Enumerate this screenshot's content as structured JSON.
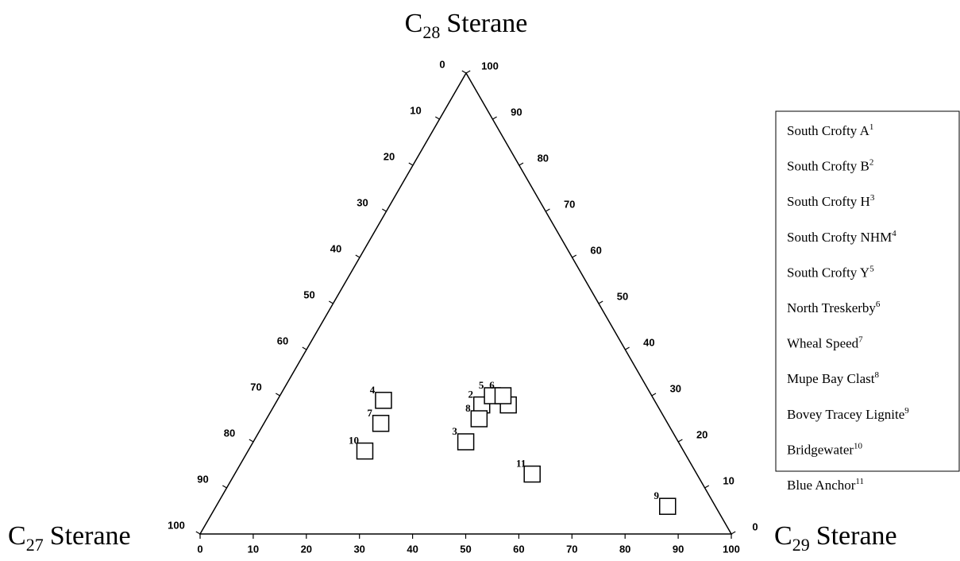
{
  "chart_data": {
    "type": "ternary",
    "axes": {
      "top": {
        "prefix": "C",
        "subscript": "28",
        "name": "Sterane",
        "ticks": [
          0,
          10,
          20,
          30,
          40,
          50,
          60,
          70,
          80,
          90,
          100
        ]
      },
      "left": {
        "prefix": "C",
        "subscript": "27",
        "name": "Sterane",
        "ticks": [
          0,
          10,
          20,
          30,
          40,
          50,
          60,
          70,
          80,
          90,
          100
        ]
      },
      "right": {
        "prefix": "C",
        "subscript": "29",
        "name": "Sterane",
        "ticks": [
          0,
          10,
          20,
          30,
          40,
          50,
          60,
          70,
          80,
          90,
          100
        ]
      }
    },
    "marker_color": "#000000",
    "points": [
      {
        "name": "South Crofty A",
        "label": "1",
        "c27": 28,
        "c28": 28,
        "c29": 44
      },
      {
        "name": "South Crofty B",
        "label": "2",
        "c27": 33,
        "c28": 28,
        "c29": 39
      },
      {
        "name": "South Crofty H",
        "label": "3",
        "c27": 40,
        "c28": 20,
        "c29": 40
      },
      {
        "name": "South Crofty NHM",
        "label": "4",
        "c27": 51,
        "c28": 29,
        "c29": 20
      },
      {
        "name": "South Crofty Y",
        "label": "5",
        "c27": 30,
        "c28": 30,
        "c29": 40
      },
      {
        "name": "North Treskerby",
        "label": "6",
        "c27": 28,
        "c28": 30,
        "c29": 42
      },
      {
        "name": "Wheal Speed",
        "label": "7",
        "c27": 54,
        "c28": 24,
        "c29": 22
      },
      {
        "name": "Mupe Bay Clast",
        "label": "8",
        "c27": 35,
        "c28": 25,
        "c29": 40
      },
      {
        "name": "Bovey Tracey Lignite",
        "label": "9",
        "c27": 9,
        "c28": 6,
        "c29": 85
      },
      {
        "name": "Bridgewater",
        "label": "10",
        "c27": 60,
        "c28": 18,
        "c29": 22
      },
      {
        "name": "Blue Anchor",
        "label": "11",
        "c27": 31,
        "c28": 13,
        "c29": 56
      }
    ]
  }
}
